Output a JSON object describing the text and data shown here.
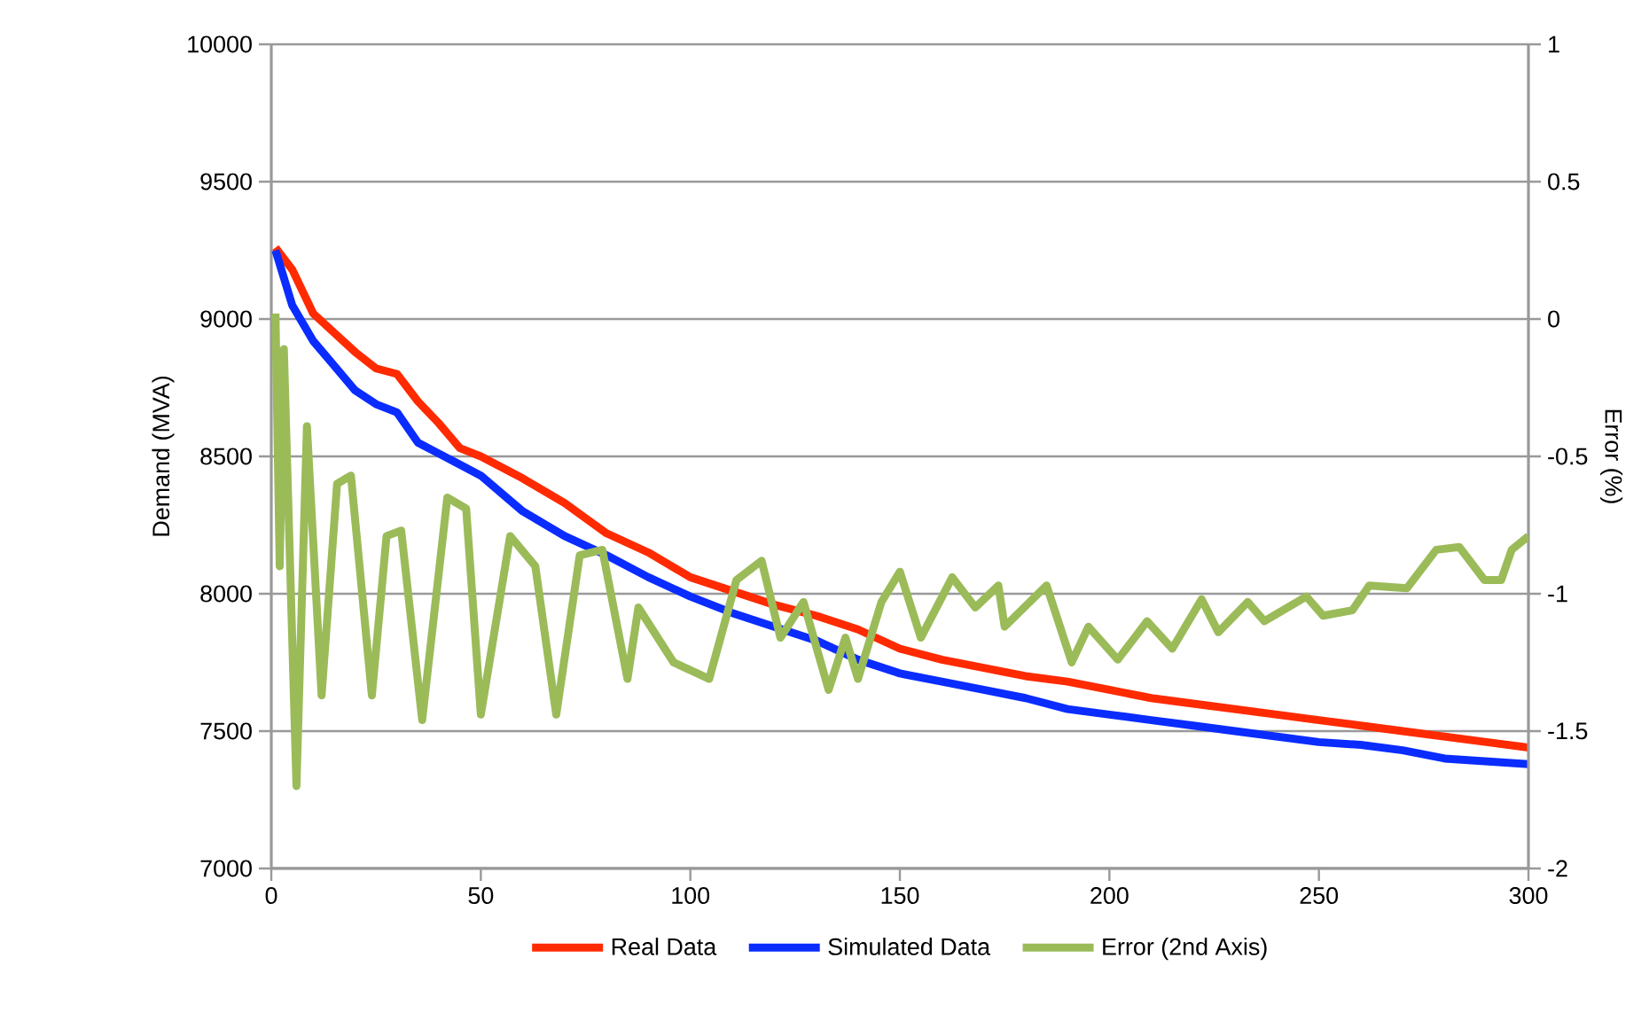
{
  "chart_data": {
    "type": "line",
    "ylabel": "Demand (MVA)",
    "y2label": "Error (%)",
    "xlim": [
      0,
      300
    ],
    "xticks": [
      0,
      50,
      100,
      150,
      200,
      250,
      300
    ],
    "ylim": [
      7000,
      10000
    ],
    "yticks": [
      7000,
      7500,
      8000,
      8500,
      9000,
      9500,
      10000
    ],
    "y2lim": [
      -2,
      1
    ],
    "y2ticks": [
      -2,
      -1.5,
      -1,
      -0.5,
      0,
      0.5,
      1
    ],
    "grid": "y",
    "legend": "bottom",
    "marker": "none",
    "line_style": "solid",
    "series": [
      {
        "name": "Real Data",
        "color": "#ff2a00",
        "x": [
          1,
          5,
          10,
          15,
          20,
          25,
          30,
          35,
          40,
          45,
          50,
          60,
          70,
          80,
          90,
          100,
          110,
          120,
          130,
          140,
          150,
          160,
          170,
          180,
          190,
          200,
          210,
          220,
          230,
          240,
          250,
          260,
          270,
          280,
          290,
          300
        ],
        "values": [
          9260,
          9180,
          9020,
          8950,
          8880,
          8820,
          8800,
          8700,
          8620,
          8530,
          8500,
          8420,
          8330,
          8220,
          8150,
          8060,
          8010,
          7960,
          7920,
          7870,
          7800,
          7760,
          7730,
          7700,
          7680,
          7650,
          7620,
          7600,
          7580,
          7560,
          7540,
          7520,
          7500,
          7480,
          7460,
          7440
        ]
      },
      {
        "name": "Simulated Data",
        "color": "#0a2cff",
        "x": [
          1,
          5,
          10,
          15,
          20,
          25,
          30,
          35,
          40,
          45,
          50,
          60,
          70,
          80,
          90,
          100,
          110,
          120,
          130,
          140,
          150,
          160,
          170,
          180,
          190,
          200,
          210,
          220,
          230,
          240,
          250,
          260,
          270,
          280,
          290,
          300
        ],
        "values": [
          9250,
          9050,
          8920,
          8830,
          8740,
          8690,
          8660,
          8550,
          8510,
          8470,
          8430,
          8300,
          8210,
          8140,
          8060,
          7990,
          7930,
          7880,
          7830,
          7760,
          7710,
          7680,
          7650,
          7620,
          7580,
          7560,
          7540,
          7520,
          7500,
          7480,
          7460,
          7450,
          7430,
          7400,
          7390,
          7380
        ]
      },
      {
        "name": "Error (2nd Axis)",
        "color": "#9bbb59",
        "axis": "y2",
        "x": [
          1,
          2,
          3,
          6,
          8.5,
          12,
          15.7,
          19,
          24,
          27.5,
          31,
          36,
          42,
          46.5,
          50,
          57,
          63,
          68,
          73.6,
          79,
          85,
          87.6,
          96,
          104.5,
          111,
          117,
          121.5,
          127,
          133,
          137,
          140,
          145.6,
          150,
          155,
          162.5,
          168,
          173.5,
          175,
          185,
          191,
          195,
          202,
          209,
          215,
          222,
          226,
          233,
          237,
          247,
          251,
          258,
          262,
          271,
          278,
          283.5,
          289.5,
          293.5,
          296,
          300
        ],
        "values": [
          0.02,
          -0.9,
          -0.11,
          -1.7,
          -0.39,
          -1.37,
          -0.6,
          -0.57,
          -1.37,
          -0.79,
          -0.77,
          -1.46,
          -0.65,
          -0.69,
          -1.44,
          -0.79,
          -0.9,
          -1.44,
          -0.86,
          -0.84,
          -1.31,
          -1.05,
          -1.25,
          -1.31,
          -0.95,
          -0.88,
          -1.16,
          -1.03,
          -1.35,
          -1.16,
          -1.31,
          -1.03,
          -0.92,
          -1.16,
          -0.94,
          -1.05,
          -0.97,
          -1.12,
          -0.97,
          -1.25,
          -1.12,
          -1.24,
          -1.1,
          -1.2,
          -1.02,
          -1.14,
          -1.03,
          -1.1,
          -1.01,
          -1.08,
          -1.06,
          -0.97,
          -0.98,
          -0.84,
          -0.83,
          -0.95,
          -0.95,
          -0.84,
          -0.79
        ]
      }
    ]
  }
}
